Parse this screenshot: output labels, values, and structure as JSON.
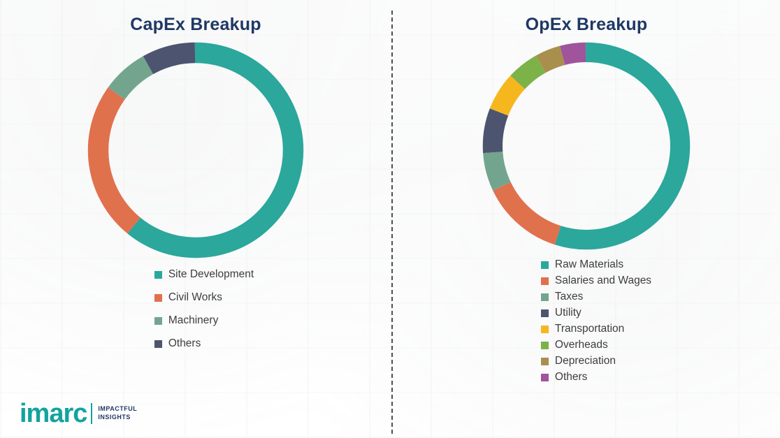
{
  "chart_data": [
    {
      "type": "pie",
      "subtype": "donut",
      "title": "CapEx Breakup",
      "labels": [
        "Site Development",
        "Civil Works",
        "Machinery",
        "Others"
      ],
      "values": [
        61,
        24,
        7,
        8
      ],
      "colors": [
        "#2BA79C",
        "#E0714D",
        "#73A58E",
        "#4C5470"
      ],
      "legend_position": "bottom",
      "start_angle": "top",
      "direction": "clockwise",
      "data_labels_shown": false
    },
    {
      "type": "pie",
      "subtype": "donut",
      "title": "OpEx Breakup",
      "labels": [
        "Raw Materials",
        "Salaries and Wages",
        "Taxes",
        "Utility",
        "Transportation",
        "Overheads",
        "Depreciation",
        "Others"
      ],
      "values": [
        55,
        13,
        6,
        7,
        6,
        5,
        4,
        4
      ],
      "colors": [
        "#2BA79C",
        "#E0714D",
        "#73A58E",
        "#4C5470",
        "#F6B71E",
        "#7DB249",
        "#A98F4E",
        "#A0549C"
      ],
      "legend_position": "bottom",
      "start_angle": "top",
      "direction": "clockwise",
      "data_labels_shown": false
    }
  ],
  "logo": {
    "brand": "imarc",
    "tagline1": "IMPACTFUL",
    "tagline2": "INSIGHTS",
    "brand_color": "#12A3A0"
  },
  "divider_style": "vertical-dashed"
}
